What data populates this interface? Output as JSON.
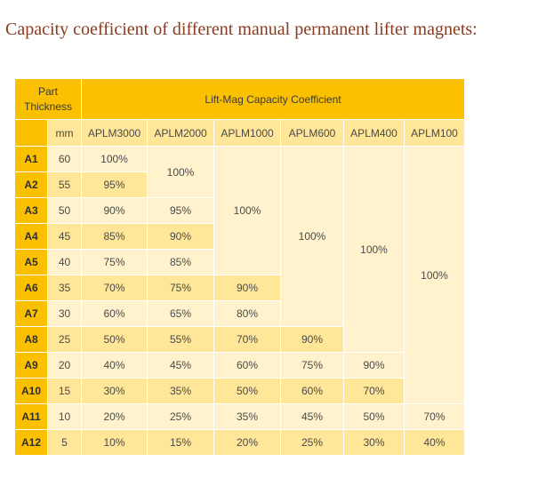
{
  "heading": "Capacity coefficient of different manual permanent lifter magnets:",
  "table": {
    "part_thickness_label": "Part Thickness",
    "coefficient_header": "Lift-Mag Capacity Coefficient",
    "mm_label": "mm",
    "models": [
      "APLM3000",
      "APLM2000",
      "APLM1000",
      "APLM600",
      "APLM400",
      "APLM100"
    ],
    "rows": [
      {
        "id": "A1",
        "mm": "60",
        "APLM3000": "100%"
      },
      {
        "id": "A2",
        "mm": "55",
        "APLM3000": "95%"
      },
      {
        "id": "A3",
        "mm": "50",
        "APLM3000": "90%",
        "APLM2000": "95%"
      },
      {
        "id": "A4",
        "mm": "45",
        "APLM3000": "85%",
        "APLM2000": "90%"
      },
      {
        "id": "A5",
        "mm": "40",
        "APLM3000": "75%",
        "APLM2000": "85%"
      },
      {
        "id": "A6",
        "mm": "35",
        "APLM3000": "70%",
        "APLM2000": "75%",
        "APLM1000": "90%"
      },
      {
        "id": "A7",
        "mm": "30",
        "APLM3000": "60%",
        "APLM2000": "65%",
        "APLM1000": "80%"
      },
      {
        "id": "A8",
        "mm": "25",
        "APLM3000": "50%",
        "APLM2000": "55%",
        "APLM1000": "70%",
        "APLM600": "90%"
      },
      {
        "id": "A9",
        "mm": "20",
        "APLM3000": "40%",
        "APLM2000": "45%",
        "APLM1000": "60%",
        "APLM600": "75%",
        "APLM400": "90%"
      },
      {
        "id": "A10",
        "mm": "15",
        "APLM3000": "30%",
        "APLM2000": "35%",
        "APLM1000": "50%",
        "APLM600": "60%",
        "APLM400": "70%"
      },
      {
        "id": "A11",
        "mm": "10",
        "APLM3000": "20%",
        "APLM2000": "25%",
        "APLM1000": "35%",
        "APLM600": "45%",
        "APLM400": "50%",
        "APLM100": "70%"
      },
      {
        "id": "A12",
        "mm": "5",
        "APLM3000": "10%",
        "APLM2000": "15%",
        "APLM1000": "20%",
        "APLM600": "25%",
        "APLM400": "30%",
        "APLM100": "40%"
      }
    ],
    "merged": {
      "APLM2000": "100%",
      "APLM1000": "100%",
      "APLM600": "100%",
      "APLM400": "100%",
      "APLM100": "100%"
    }
  },
  "colors": {
    "header": "#fbc000",
    "light": "#fff2cc",
    "mid": "#ffe699",
    "heading_text": "#8b3a1e"
  }
}
